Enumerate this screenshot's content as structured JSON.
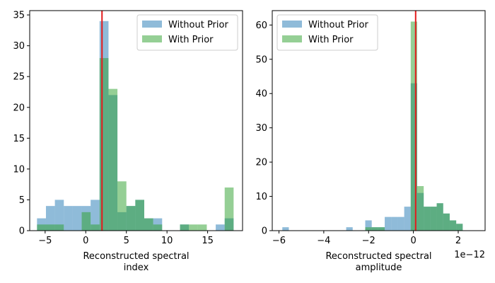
{
  "chart_data": [
    {
      "type": "histogram",
      "xlabel": [
        "Reconstructed spectral",
        "index"
      ],
      "xlim": [
        -6.9,
        19.3
      ],
      "ylim": [
        0,
        35.7
      ],
      "xticks": [
        -5,
        0,
        5,
        10,
        15
      ],
      "yticks": [
        0,
        5,
        10,
        15,
        20,
        25,
        30,
        35
      ],
      "bin_width": 1.1,
      "vline_x": 2.0,
      "vline_color": "#e41a1c",
      "legend_position": "upper right",
      "series": [
        {
          "name": "Without Prior",
          "color": "#1f77b4",
          "opacity": 0.5,
          "bins": [
            {
              "x": -6.0,
              "count": 2
            },
            {
              "x": -4.9,
              "count": 4
            },
            {
              "x": -3.8,
              "count": 5
            },
            {
              "x": -2.7,
              "count": 4
            },
            {
              "x": -1.6,
              "count": 4
            },
            {
              "x": -0.5,
              "count": 4
            },
            {
              "x": 0.6,
              "count": 5
            },
            {
              "x": 1.7,
              "count": 34
            },
            {
              "x": 2.8,
              "count": 22
            },
            {
              "x": 3.9,
              "count": 3
            },
            {
              "x": 5.0,
              "count": 4
            },
            {
              "x": 6.1,
              "count": 5
            },
            {
              "x": 7.2,
              "count": 2
            },
            {
              "x": 8.3,
              "count": 2
            },
            {
              "x": 11.6,
              "count": 1
            },
            {
              "x": 16.0,
              "count": 1
            },
            {
              "x": 17.1,
              "count": 2
            }
          ]
        },
        {
          "name": "With Prior",
          "color": "#2ca02c",
          "opacity": 0.5,
          "bins": [
            {
              "x": -6.0,
              "count": 1
            },
            {
              "x": -4.9,
              "count": 1
            },
            {
              "x": -3.8,
              "count": 1
            },
            {
              "x": -0.5,
              "count": 3
            },
            {
              "x": 0.6,
              "count": 1
            },
            {
              "x": 1.7,
              "count": 28
            },
            {
              "x": 2.8,
              "count": 23
            },
            {
              "x": 3.9,
              "count": 8
            },
            {
              "x": 5.0,
              "count": 4
            },
            {
              "x": 6.1,
              "count": 5
            },
            {
              "x": 7.2,
              "count": 2
            },
            {
              "x": 8.3,
              "count": 1
            },
            {
              "x": 11.6,
              "count": 1
            },
            {
              "x": 12.7,
              "count": 1
            },
            {
              "x": 13.8,
              "count": 1
            },
            {
              "x": 17.1,
              "count": 7
            }
          ]
        }
      ]
    },
    {
      "type": "histogram",
      "xlabel": [
        "Reconstructed spectral",
        "amplitude"
      ],
      "offset_text": "1e−12",
      "xlim": [
        -6.3,
        3.2
      ],
      "ylim": [
        0,
        64.2
      ],
      "xticks": [
        -6,
        -4,
        -2,
        0,
        2
      ],
      "yticks": [
        0,
        10,
        20,
        30,
        40,
        50,
        60
      ],
      "bin_width": 0.29,
      "vline_x": 0.1,
      "vline_color": "#e41a1c",
      "legend_position": "upper left",
      "series": [
        {
          "name": "Without Prior",
          "color": "#1f77b4",
          "opacity": 0.5,
          "bins": [
            {
              "x": -5.85,
              "count": 1
            },
            {
              "x": -3.0,
              "count": 1
            },
            {
              "x": -2.15,
              "count": 3
            },
            {
              "x": -1.86,
              "count": 1
            },
            {
              "x": -1.57,
              "count": 1
            },
            {
              "x": -1.28,
              "count": 4
            },
            {
              "x": -0.99,
              "count": 4
            },
            {
              "x": -0.7,
              "count": 4
            },
            {
              "x": -0.41,
              "count": 7
            },
            {
              "x": -0.12,
              "count": 43
            },
            {
              "x": 0.17,
              "count": 11
            },
            {
              "x": 0.46,
              "count": 7
            },
            {
              "x": 0.75,
              "count": 7
            },
            {
              "x": 1.04,
              "count": 8
            },
            {
              "x": 1.33,
              "count": 5
            },
            {
              "x": 1.62,
              "count": 3
            },
            {
              "x": 1.91,
              "count": 2
            }
          ]
        },
        {
          "name": "With Prior",
          "color": "#2ca02c",
          "opacity": 0.5,
          "bins": [
            {
              "x": -2.15,
              "count": 1
            },
            {
              "x": -1.86,
              "count": 1
            },
            {
              "x": -1.57,
              "count": 1
            },
            {
              "x": -0.12,
              "count": 61
            },
            {
              "x": 0.17,
              "count": 13
            },
            {
              "x": 0.46,
              "count": 7
            },
            {
              "x": 0.75,
              "count": 7
            },
            {
              "x": 1.04,
              "count": 8
            },
            {
              "x": 1.33,
              "count": 5
            },
            {
              "x": 1.62,
              "count": 3
            },
            {
              "x": 1.91,
              "count": 2
            }
          ]
        }
      ]
    }
  ]
}
